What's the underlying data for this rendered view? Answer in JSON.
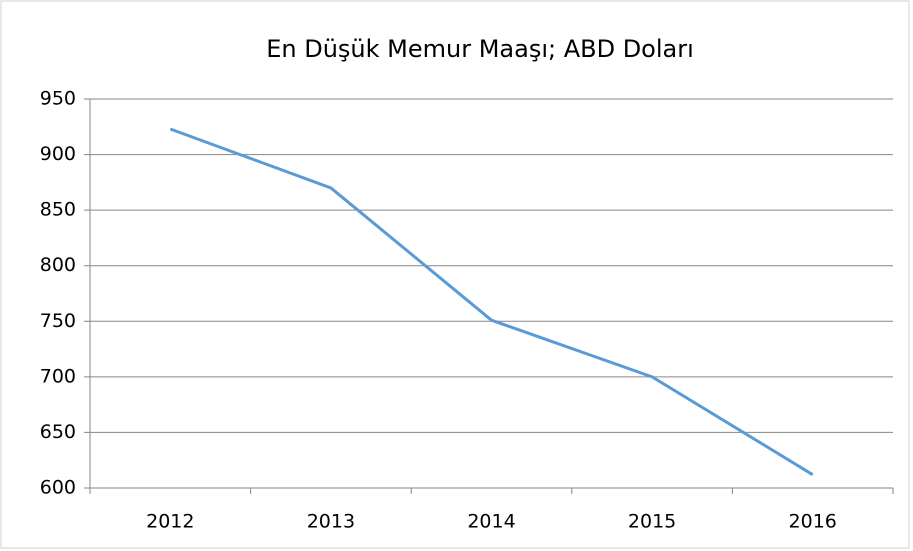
{
  "chart_data": {
    "type": "line",
    "title": "En Düşük Memur Maaşı; ABD Doları",
    "categories": [
      "2012",
      "2013",
      "2014",
      "2015",
      "2016"
    ],
    "series": [
      {
        "name": "En Düşük Memur Maaşı",
        "color": "#5b9bd5",
        "values": [
          923,
          870,
          751,
          700,
          612
        ]
      }
    ],
    "ylim": [
      600,
      950
    ],
    "yticks": [
      600,
      650,
      700,
      750,
      800,
      850,
      900,
      950
    ],
    "grid": true
  }
}
